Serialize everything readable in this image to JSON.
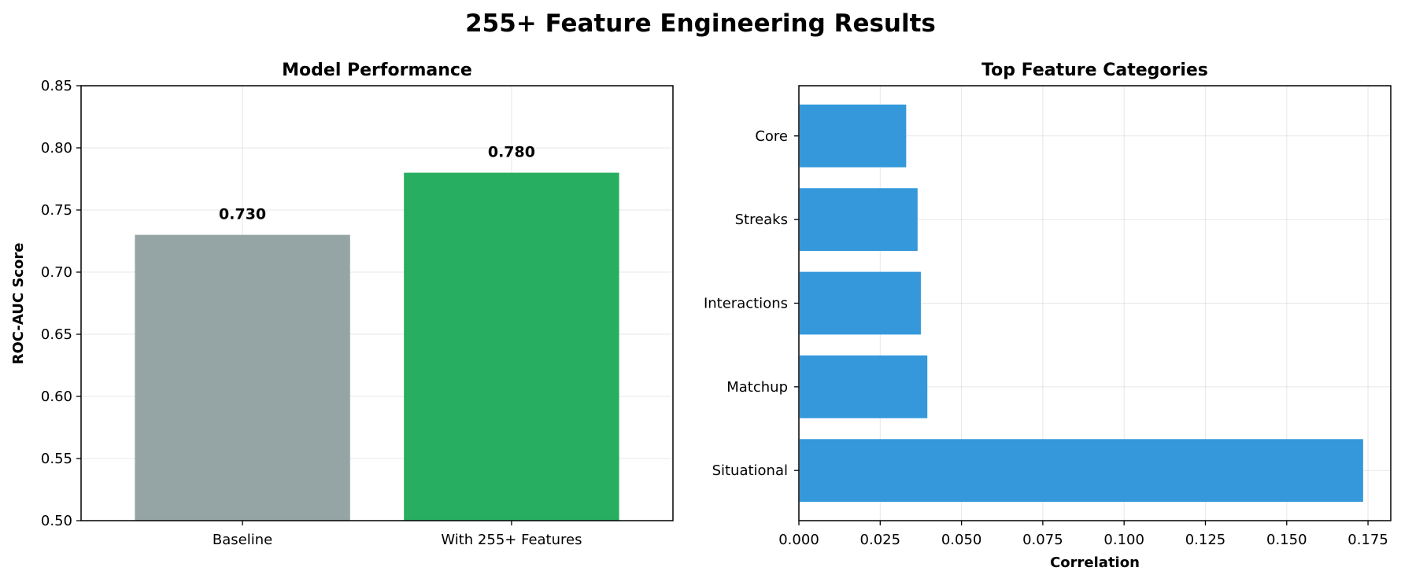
{
  "suptitle": "255+ Feature Engineering Results",
  "chart_data": [
    {
      "type": "bar",
      "title": "Model Performance",
      "xlabel": "",
      "ylabel": "ROC-AUC Score",
      "categories": [
        "Baseline",
        "With 255+ Features"
      ],
      "values": [
        0.73,
        0.78
      ],
      "value_labels": [
        "0.730",
        "0.780"
      ],
      "colors": [
        "#95a5a6",
        "#27ae60"
      ],
      "ylim": [
        0.5,
        0.85
      ],
      "yticks": [
        0.5,
        0.55,
        0.6,
        0.65,
        0.7,
        0.75,
        0.8,
        0.85
      ],
      "ytick_labels": [
        "0.50",
        "0.55",
        "0.60",
        "0.65",
        "0.70",
        "0.75",
        "0.80",
        "0.85"
      ],
      "grid": true
    },
    {
      "type": "bar",
      "orientation": "horizontal",
      "title": "Top Feature Categories",
      "xlabel": "Correlation",
      "ylabel": "",
      "categories": [
        "Core",
        "Streaks",
        "Interactions",
        "Matchup",
        "Situational"
      ],
      "values": [
        0.033,
        0.0365,
        0.0375,
        0.0395,
        0.1735
      ],
      "color": "#3498db",
      "xlim": [
        0,
        0.182
      ],
      "xticks": [
        0,
        0.025,
        0.05,
        0.075,
        0.1,
        0.125,
        0.15,
        0.175
      ],
      "xtick_labels": [
        "0.000",
        "0.025",
        "0.050",
        "0.075",
        "0.100",
        "0.125",
        "0.150",
        "0.175"
      ],
      "grid": true
    }
  ]
}
